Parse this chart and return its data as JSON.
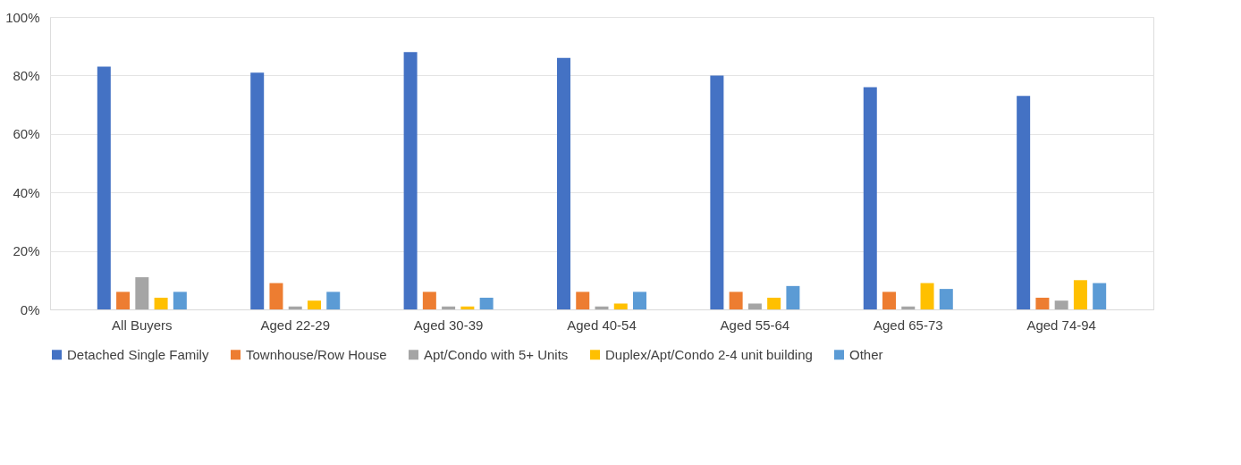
{
  "chart_data": {
    "type": "bar",
    "categories": [
      "All Buyers",
      "Aged 22-29",
      "Aged 30-39",
      "Aged 40-54",
      "Aged 55-64",
      "Aged 65-73",
      "Aged 74-94"
    ],
    "series": [
      {
        "name": "Detached Single Family",
        "color": "#4472c4",
        "values": [
          83,
          81,
          88,
          86,
          80,
          76,
          73
        ]
      },
      {
        "name": "Townhouse/Row House",
        "color": "#ed7d31",
        "values": [
          6,
          9,
          6,
          6,
          6,
          6,
          4
        ]
      },
      {
        "name": "Apt/Condo with 5+ Units",
        "color": "#a5a5a5",
        "values": [
          11,
          1,
          1,
          1,
          2,
          1,
          3
        ]
      },
      {
        "name": "Duplex/Apt/Condo 2-4 unit building",
        "color": "#ffc000",
        "values": [
          4,
          3,
          1,
          2,
          4,
          9,
          10
        ]
      },
      {
        "name": "Other",
        "color": "#5b9bd5",
        "values": [
          6,
          6,
          4,
          6,
          8,
          7,
          9
        ]
      }
    ],
    "ylim": [
      0,
      100
    ],
    "yticks": [
      {
        "value": 0,
        "label": "0%"
      },
      {
        "value": 20,
        "label": "20%"
      },
      {
        "value": 40,
        "label": "40%"
      },
      {
        "value": 60,
        "label": "60%"
      },
      {
        "value": 80,
        "label": "80%"
      },
      {
        "value": 100,
        "label": "100%"
      }
    ],
    "grid": "y",
    "legend": "bottom"
  }
}
